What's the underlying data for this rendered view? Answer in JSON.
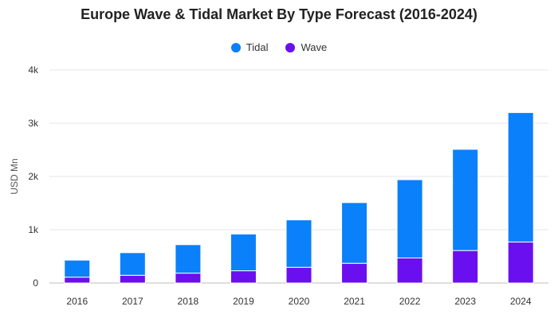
{
  "chart_data": {
    "type": "bar",
    "stacked": true,
    "title": "Europe Wave & Tidal Market By Type Forecast (2016-2024)",
    "xlabel": "",
    "ylabel": "USD Mn",
    "ylim": [
      0,
      4000
    ],
    "yticks": [
      0,
      1000,
      2000,
      3000,
      4000
    ],
    "ytick_labels": [
      "0",
      "1k",
      "2k",
      "3k",
      "4k"
    ],
    "grid": true,
    "legend_position": "top-center",
    "categories": [
      "2016",
      "2017",
      "2018",
      "2019",
      "2020",
      "2021",
      "2022",
      "2023",
      "2024"
    ],
    "series": [
      {
        "name": "Wave",
        "color": "#6a0ff0",
        "values": [
          110,
          145,
          185,
          230,
          295,
          370,
          470,
          610,
          770
        ]
      },
      {
        "name": "Tidal",
        "color": "#0a80fb",
        "values": [
          320,
          425,
          535,
          690,
          890,
          1140,
          1470,
          1900,
          2430
        ]
      }
    ],
    "legend_order": [
      "Tidal",
      "Wave"
    ]
  }
}
